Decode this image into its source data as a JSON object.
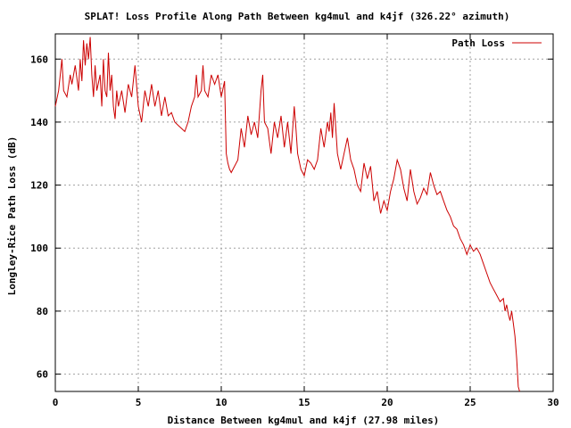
{
  "chart_data": {
    "type": "line",
    "title": "SPLAT! Loss Profile Along Path Between kg4mul and k4jf (326.22° azimuth)",
    "xlabel": "Distance Between kg4mul and k4jf (27.98 miles)",
    "ylabel": "Longley-Rice Path Loss (dB)",
    "xlim": [
      0,
      30
    ],
    "ylim": [
      54.5,
      168
    ],
    "x_ticks": [
      "0",
      "5",
      "10",
      "15",
      "20",
      "25",
      "30"
    ],
    "y_ticks": [
      "60",
      "80",
      "100",
      "120",
      "140",
      "160"
    ],
    "grid": true,
    "legend_position": "top-right",
    "series": [
      {
        "name": "Path Loss",
        "color": "#cc0000",
        "points": [
          [
            0.0,
            145
          ],
          [
            0.2,
            150
          ],
          [
            0.4,
            160
          ],
          [
            0.5,
            150
          ],
          [
            0.7,
            148
          ],
          [
            0.9,
            155
          ],
          [
            1.0,
            152
          ],
          [
            1.2,
            158
          ],
          [
            1.4,
            150
          ],
          [
            1.5,
            160
          ],
          [
            1.6,
            153
          ],
          [
            1.7,
            166
          ],
          [
            1.8,
            158
          ],
          [
            1.9,
            165
          ],
          [
            2.0,
            160
          ],
          [
            2.1,
            167
          ],
          [
            2.2,
            155
          ],
          [
            2.3,
            148
          ],
          [
            2.4,
            158
          ],
          [
            2.5,
            150
          ],
          [
            2.7,
            155
          ],
          [
            2.8,
            145
          ],
          [
            2.9,
            160
          ],
          [
            3.0,
            150
          ],
          [
            3.1,
            148
          ],
          [
            3.2,
            162
          ],
          [
            3.3,
            150
          ],
          [
            3.4,
            155
          ],
          [
            3.5,
            145
          ],
          [
            3.6,
            141
          ],
          [
            3.7,
            150
          ],
          [
            3.8,
            145
          ],
          [
            4.0,
            150
          ],
          [
            4.2,
            143
          ],
          [
            4.4,
            152
          ],
          [
            4.6,
            148
          ],
          [
            4.8,
            158
          ],
          [
            5.0,
            145
          ],
          [
            5.2,
            140
          ],
          [
            5.4,
            150
          ],
          [
            5.6,
            145
          ],
          [
            5.8,
            152
          ],
          [
            6.0,
            145
          ],
          [
            6.2,
            150
          ],
          [
            6.4,
            142
          ],
          [
            6.6,
            148
          ],
          [
            6.8,
            142
          ],
          [
            7.0,
            143
          ],
          [
            7.2,
            140
          ],
          [
            7.4,
            139
          ],
          [
            7.6,
            138
          ],
          [
            7.8,
            137
          ],
          [
            8.0,
            140
          ],
          [
            8.2,
            145
          ],
          [
            8.4,
            148
          ],
          [
            8.5,
            155
          ],
          [
            8.6,
            148
          ],
          [
            8.8,
            150
          ],
          [
            8.9,
            158
          ],
          [
            9.0,
            150
          ],
          [
            9.2,
            148
          ],
          [
            9.4,
            155
          ],
          [
            9.6,
            152
          ],
          [
            9.8,
            155
          ],
          [
            10.0,
            148
          ],
          [
            10.2,
            153
          ],
          [
            10.3,
            130
          ],
          [
            10.4,
            127
          ],
          [
            10.5,
            125
          ],
          [
            10.6,
            124
          ],
          [
            10.8,
            126
          ],
          [
            11.0,
            128
          ],
          [
            11.2,
            138
          ],
          [
            11.4,
            132
          ],
          [
            11.6,
            142
          ],
          [
            11.8,
            136
          ],
          [
            12.0,
            140
          ],
          [
            12.2,
            135
          ],
          [
            12.4,
            150
          ],
          [
            12.5,
            155
          ],
          [
            12.6,
            140
          ],
          [
            12.8,
            138
          ],
          [
            13.0,
            130
          ],
          [
            13.2,
            140
          ],
          [
            13.4,
            135
          ],
          [
            13.6,
            142
          ],
          [
            13.8,
            132
          ],
          [
            14.0,
            140
          ],
          [
            14.2,
            130
          ],
          [
            14.4,
            145
          ],
          [
            14.5,
            138
          ],
          [
            14.6,
            130
          ],
          [
            14.8,
            125
          ],
          [
            15.0,
            123
          ],
          [
            15.2,
            128
          ],
          [
            15.4,
            127
          ],
          [
            15.6,
            125
          ],
          [
            15.8,
            128
          ],
          [
            16.0,
            138
          ],
          [
            16.2,
            132
          ],
          [
            16.4,
            140
          ],
          [
            16.5,
            137
          ],
          [
            16.6,
            143
          ],
          [
            16.7,
            135
          ],
          [
            16.8,
            146
          ],
          [
            17.0,
            130
          ],
          [
            17.2,
            125
          ],
          [
            17.4,
            130
          ],
          [
            17.6,
            135
          ],
          [
            17.8,
            128
          ],
          [
            18.0,
            125
          ],
          [
            18.2,
            120
          ],
          [
            18.4,
            118
          ],
          [
            18.6,
            127
          ],
          [
            18.8,
            122
          ],
          [
            19.0,
            126
          ],
          [
            19.2,
            115
          ],
          [
            19.4,
            118
          ],
          [
            19.6,
            111
          ],
          [
            19.8,
            115
          ],
          [
            20.0,
            112
          ],
          [
            20.2,
            118
          ],
          [
            20.4,
            122
          ],
          [
            20.6,
            128
          ],
          [
            20.8,
            125
          ],
          [
            21.0,
            119
          ],
          [
            21.2,
            115
          ],
          [
            21.4,
            125
          ],
          [
            21.6,
            118
          ],
          [
            21.8,
            114
          ],
          [
            22.0,
            116
          ],
          [
            22.2,
            119
          ],
          [
            22.4,
            117
          ],
          [
            22.6,
            124
          ],
          [
            22.8,
            120
          ],
          [
            23.0,
            117
          ],
          [
            23.2,
            118
          ],
          [
            23.4,
            115
          ],
          [
            23.6,
            112
          ],
          [
            23.8,
            110
          ],
          [
            24.0,
            107
          ],
          [
            24.2,
            106
          ],
          [
            24.4,
            103
          ],
          [
            24.6,
            101
          ],
          [
            24.8,
            98
          ],
          [
            25.0,
            101
          ],
          [
            25.2,
            99
          ],
          [
            25.4,
            100
          ],
          [
            25.6,
            98
          ],
          [
            25.8,
            95
          ],
          [
            26.0,
            92
          ],
          [
            26.2,
            89
          ],
          [
            26.4,
            87
          ],
          [
            26.6,
            85
          ],
          [
            26.8,
            83
          ],
          [
            27.0,
            84
          ],
          [
            27.1,
            80
          ],
          [
            27.2,
            82
          ],
          [
            27.3,
            79
          ],
          [
            27.4,
            77
          ],
          [
            27.5,
            80
          ],
          [
            27.6,
            76
          ],
          [
            27.7,
            72
          ],
          [
            27.8,
            65
          ],
          [
            27.9,
            56
          ],
          [
            27.98,
            54.5
          ]
        ]
      }
    ]
  }
}
